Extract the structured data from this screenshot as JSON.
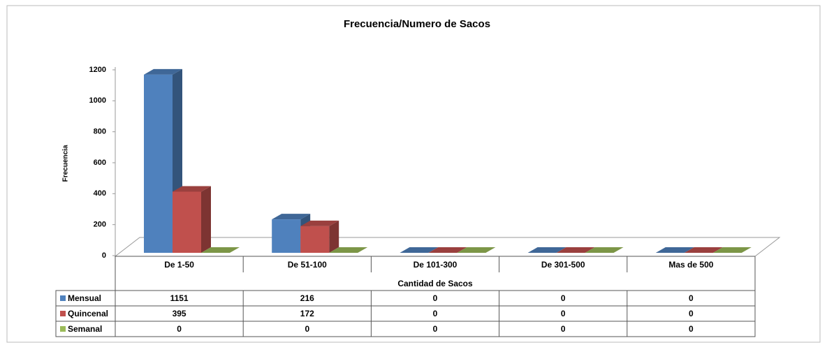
{
  "chart_data": {
    "type": "bar3d",
    "title": "Frecuencia/Numero de Sacos",
    "y_label": "Frecuencia",
    "x_label": "Cantidad de Sacos",
    "categories": [
      "De 1-50",
      "De 51-100",
      "De 101-300",
      "De 301-500",
      "Mas de 500"
    ],
    "series": [
      {
        "name": "Mensual",
        "color": "#4f81bd",
        "values": [
          1151,
          216,
          0,
          0,
          0
        ]
      },
      {
        "name": "Quincenal",
        "color": "#c0504d",
        "values": [
          395,
          172,
          0,
          0,
          0
        ]
      },
      {
        "name": "Semanal",
        "color": "#9bbb59",
        "values": [
          0,
          0,
          0,
          0,
          0
        ]
      }
    ],
    "ylim": [
      0,
      1200
    ],
    "yticks": [
      0,
      200,
      400,
      600,
      800,
      1000,
      1200
    ],
    "data_table": true
  }
}
